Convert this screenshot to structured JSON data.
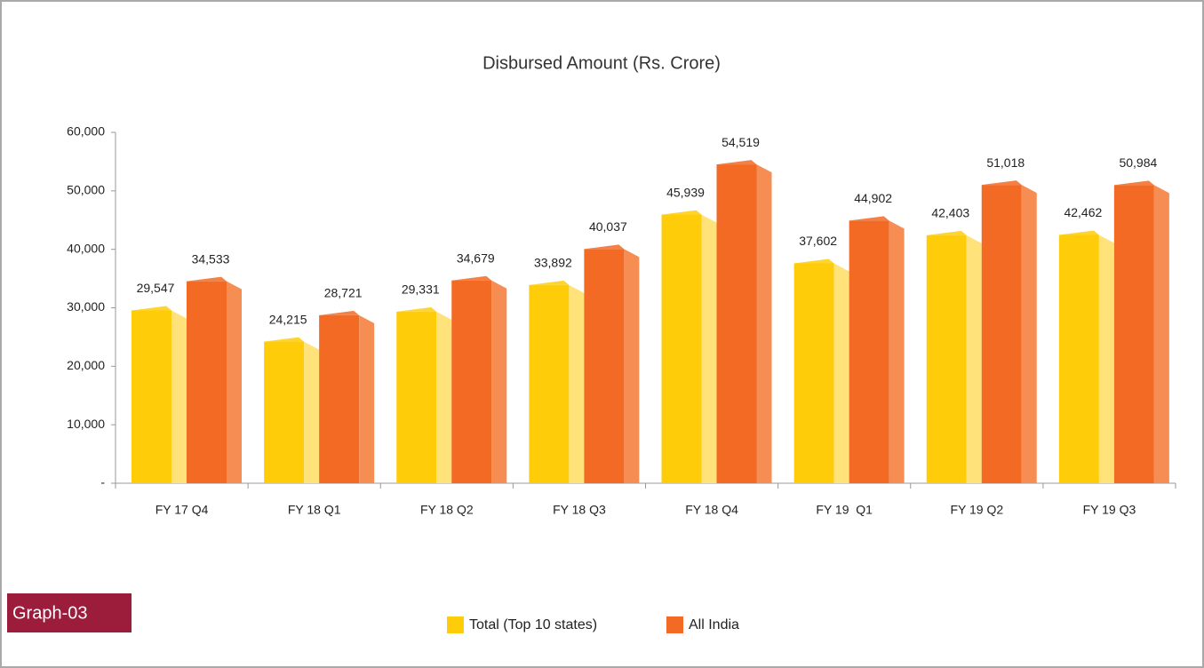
{
  "chart_data": {
    "type": "bar3d",
    "title": "Disbursed Amount (Rs. Crore)",
    "categories": [
      "FY 17 Q4",
      "FY 18 Q1",
      "FY 18 Q2",
      "FY 18 Q3",
      "FY 18 Q4",
      "FY 19  Q1",
      "FY 19 Q2",
      "FY 19 Q3"
    ],
    "series": [
      {
        "name": "Total (Top 10 states)",
        "color": "#ffcc0a",
        "side_color": "#ffe27a",
        "values": [
          29547,
          24215,
          29331,
          33892,
          45939,
          37602,
          42403,
          42462
        ],
        "value_labels": [
          "29,547",
          "24,215",
          "29,331",
          "33,892",
          "45,939",
          "37,602",
          "42,403",
          "42,462"
        ]
      },
      {
        "name": "All India",
        "color": "#f26a24",
        "side_color": "#f68d52",
        "values": [
          34533,
          28721,
          34679,
          40037,
          54519,
          44902,
          51018,
          50984
        ],
        "value_labels": [
          "34,533",
          "28,721",
          "34,679",
          "40,037",
          "54,519",
          "44,902",
          "51,018",
          "50,984"
        ]
      }
    ],
    "ylim": [
      0,
      60000
    ],
    "yticks": [
      {
        "value": 0,
        "label": "-"
      },
      {
        "value": 10000,
        "label": "10,000"
      },
      {
        "value": 20000,
        "label": "20,000"
      },
      {
        "value": 30000,
        "label": "30,000"
      },
      {
        "value": 40000,
        "label": "40,000"
      },
      {
        "value": 50000,
        "label": "50,000"
      },
      {
        "value": 60000,
        "label": "60,000"
      }
    ],
    "legend": "bottom",
    "badge": "Graph-03"
  }
}
